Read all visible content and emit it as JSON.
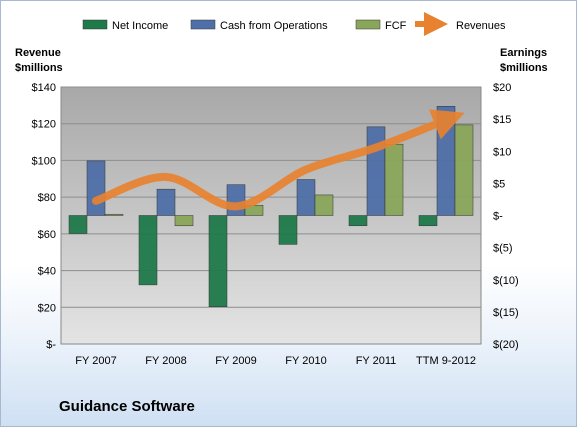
{
  "company": "Guidance Software",
  "colors": {
    "net_income": "#1f7a4a",
    "cfo": "#4f6fa8",
    "fcf": "#8aa65a",
    "revenues": "#e9822e",
    "plot_bg": "#c6c6c6"
  },
  "chart_data": {
    "type": "bar",
    "categories": [
      "FY 2007",
      "FY 2008",
      "FY 2009",
      "FY 2010",
      "FY 2011",
      "TTM 9-2012"
    ],
    "ylabel_left": "Revenue\n$millions",
    "ylabel_right": "Earnings\n$millions",
    "ylim_left": [
      0,
      140
    ],
    "ylim_right": [
      -20,
      20
    ],
    "left_ticks": [
      "$-",
      "$20",
      "$40",
      "$60",
      "$80",
      "$100",
      "$120",
      "$140"
    ],
    "right_ticks": [
      "$(20)",
      "$(15)",
      "$(10)",
      "$(5)",
      "$-",
      "$5",
      "$10",
      "$15",
      "$20"
    ],
    "legend": [
      "Net Income",
      "Cash from Operations",
      "FCF",
      "Revenues"
    ],
    "legend_position": "top",
    "grid": true,
    "series": [
      {
        "name": "Net Income",
        "axis": "right",
        "type": "bar",
        "values": [
          -2.8,
          -10.8,
          -14.2,
          -4.5,
          -1.6,
          -1.6
        ]
      },
      {
        "name": "Cash from Operations",
        "axis": "right",
        "type": "bar",
        "values": [
          8.5,
          4.1,
          4.8,
          5.6,
          13.8,
          17.0
        ]
      },
      {
        "name": "FCF",
        "axis": "right",
        "type": "bar",
        "values": [
          0.2,
          -1.6,
          1.6,
          3.2,
          11.1,
          14.1
        ]
      },
      {
        "name": "Revenues",
        "axis": "left",
        "type": "line",
        "values": [
          78,
          91,
          75,
          95,
          107,
          122
        ]
      }
    ]
  }
}
